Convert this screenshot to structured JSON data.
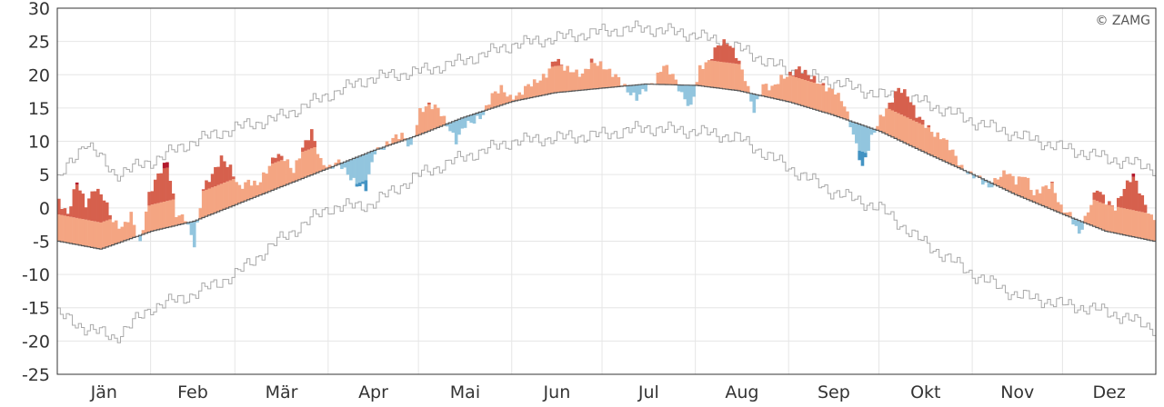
{
  "chart_data": {
    "type": "bar",
    "credit": "© ZAMG",
    "ylim": [
      -25,
      30
    ],
    "yticks": [
      30,
      25,
      20,
      15,
      10,
      5,
      0,
      -5,
      -10,
      -15,
      -20,
      -25
    ],
    "months": [
      "Jän",
      "Feb",
      "Mär",
      "Apr",
      "Mai",
      "Jun",
      "Jul",
      "Aug",
      "Sep",
      "Okt",
      "Nov",
      "Dez"
    ],
    "grid": true,
    "colors": {
      "warm_light": "#f4a582",
      "warm_mid": "#d6604d",
      "warm_dark": "#b2182b",
      "cold_light": "#92c5de",
      "cold_dark": "#4393c3",
      "normal_line": "#555555",
      "extreme_line": "#aaaaaa",
      "grid": "#e6e6e6"
    },
    "series": [
      {
        "key": "normal",
        "note": "climatological daily mean (°C), monthly anchors",
        "x": [
          1,
          15,
          32,
          46,
          60,
          74,
          91,
          105,
          121,
          135,
          152,
          166,
          182,
          196,
          213,
          227,
          244,
          258,
          274,
          288,
          305,
          319,
          335,
          349,
          365
        ],
        "values": [
          -5.0,
          -6.2,
          -3.5,
          -2.0,
          0.5,
          3.0,
          6.0,
          8.5,
          11.0,
          13.5,
          16.0,
          17.3,
          18.0,
          18.6,
          18.4,
          17.6,
          15.9,
          14.0,
          11.5,
          8.5,
          5.0,
          2.0,
          -1.0,
          -3.5,
          -5.0
        ]
      },
      {
        "key": "record_high",
        "note": "upper envelope of recorded daily means (°C)",
        "x": [
          1,
          10,
          20,
          32,
          46,
          60,
          74,
          91,
          105,
          121,
          135,
          152,
          166,
          182,
          196,
          213,
          227,
          244,
          258,
          274,
          288,
          305,
          319,
          335,
          349,
          365
        ],
        "values": [
          4.0,
          10.0,
          5.0,
          7.0,
          10.0,
          12.0,
          13.5,
          17.0,
          19.5,
          20.5,
          22.0,
          24.5,
          25.5,
          26.5,
          27.0,
          26.0,
          24.0,
          20.5,
          19.0,
          17.0,
          16.0,
          13.0,
          11.0,
          9.0,
          7.5,
          6.0
        ]
      },
      {
        "key": "record_low",
        "note": "lower envelope of recorded daily means (°C)",
        "x": [
          1,
          10,
          20,
          32,
          46,
          60,
          74,
          91,
          105,
          121,
          135,
          152,
          166,
          182,
          196,
          213,
          227,
          244,
          258,
          274,
          288,
          305,
          319,
          335,
          349,
          365
        ],
        "values": [
          -16.0,
          -18.0,
          -19.5,
          -15.0,
          -13.0,
          -10.0,
          -5.0,
          0.0,
          0.5,
          5.0,
          7.5,
          10.0,
          10.5,
          11.0,
          12.0,
          11.5,
          10.5,
          6.0,
          2.5,
          0.0,
          -5.0,
          -10.0,
          -13.0,
          -14.5,
          -15.5,
          -18.0
        ]
      },
      {
        "key": "observed",
        "note": "daily mean of the year (°C); filled between normal and observed",
        "x": [
          1,
          4,
          7,
          10,
          13,
          16,
          19,
          22,
          25,
          28,
          31,
          34,
          37,
          40,
          43,
          46,
          49,
          52,
          55,
          58,
          61,
          64,
          67,
          70,
          73,
          76,
          79,
          82,
          85,
          88,
          91,
          94,
          97,
          100,
          103,
          106,
          109,
          112,
          115,
          118,
          121,
          124,
          127,
          130,
          133,
          136,
          139,
          142,
          145,
          148,
          151,
          154,
          157,
          160,
          163,
          166,
          169,
          172,
          175,
          178,
          181,
          184,
          187,
          190,
          193,
          196,
          199,
          202,
          205,
          208,
          211,
          214,
          217,
          220,
          223,
          226,
          229,
          232,
          235,
          238,
          241,
          244,
          247,
          250,
          253,
          256,
          259,
          262,
          265,
          268,
          271,
          274,
          277,
          280,
          283,
          286,
          289,
          292,
          295,
          298,
          301,
          304,
          307,
          310,
          313,
          316,
          319,
          322,
          325,
          328,
          331,
          334,
          337,
          340,
          343,
          346,
          349,
          352,
          355,
          358,
          361,
          364
        ],
        "values": [
          1.0,
          -1.0,
          4.0,
          0.5,
          3.0,
          1.5,
          -2.0,
          -3.0,
          -1.0,
          -5.5,
          2.0,
          5.0,
          7.0,
          -1.0,
          -1.5,
          -5.5,
          3.0,
          5.0,
          7.5,
          6.0,
          3.0,
          4.0,
          3.5,
          5.5,
          8.0,
          7.5,
          5.5,
          9.0,
          11.5,
          7.0,
          6.0,
          7.0,
          5.0,
          3.5,
          3.0,
          8.5,
          9.0,
          10.5,
          11.0,
          9.0,
          14.5,
          15.5,
          15.0,
          12.5,
          10.0,
          12.5,
          13.0,
          14.0,
          17.0,
          18.0,
          16.5,
          17.0,
          18.5,
          19.0,
          20.0,
          22.5,
          21.0,
          20.5,
          20.0,
          22.0,
          21.5,
          20.5,
          19.5,
          17.5,
          16.5,
          18.0,
          19.0,
          21.5,
          20.0,
          17.0,
          15.0,
          21.0,
          22.0,
          24.5,
          25.0,
          23.0,
          19.5,
          14.5,
          18.5,
          18.0,
          19.5,
          20.0,
          21.0,
          20.0,
          19.0,
          18.0,
          17.5,
          15.5,
          11.0,
          6.0,
          10.5,
          13.5,
          15.5,
          18.0,
          17.0,
          14.0,
          12.5,
          11.0,
          10.5,
          8.5,
          6.0,
          5.0,
          4.5,
          3.0,
          4.5,
          5.5,
          4.0,
          5.0,
          2.0,
          3.0,
          3.5,
          0.0,
          -1.0,
          -4.0,
          -0.5,
          3.0,
          1.0,
          0.0,
          3.0,
          5.0,
          1.5,
          -1.5
        ]
      }
    ]
  }
}
